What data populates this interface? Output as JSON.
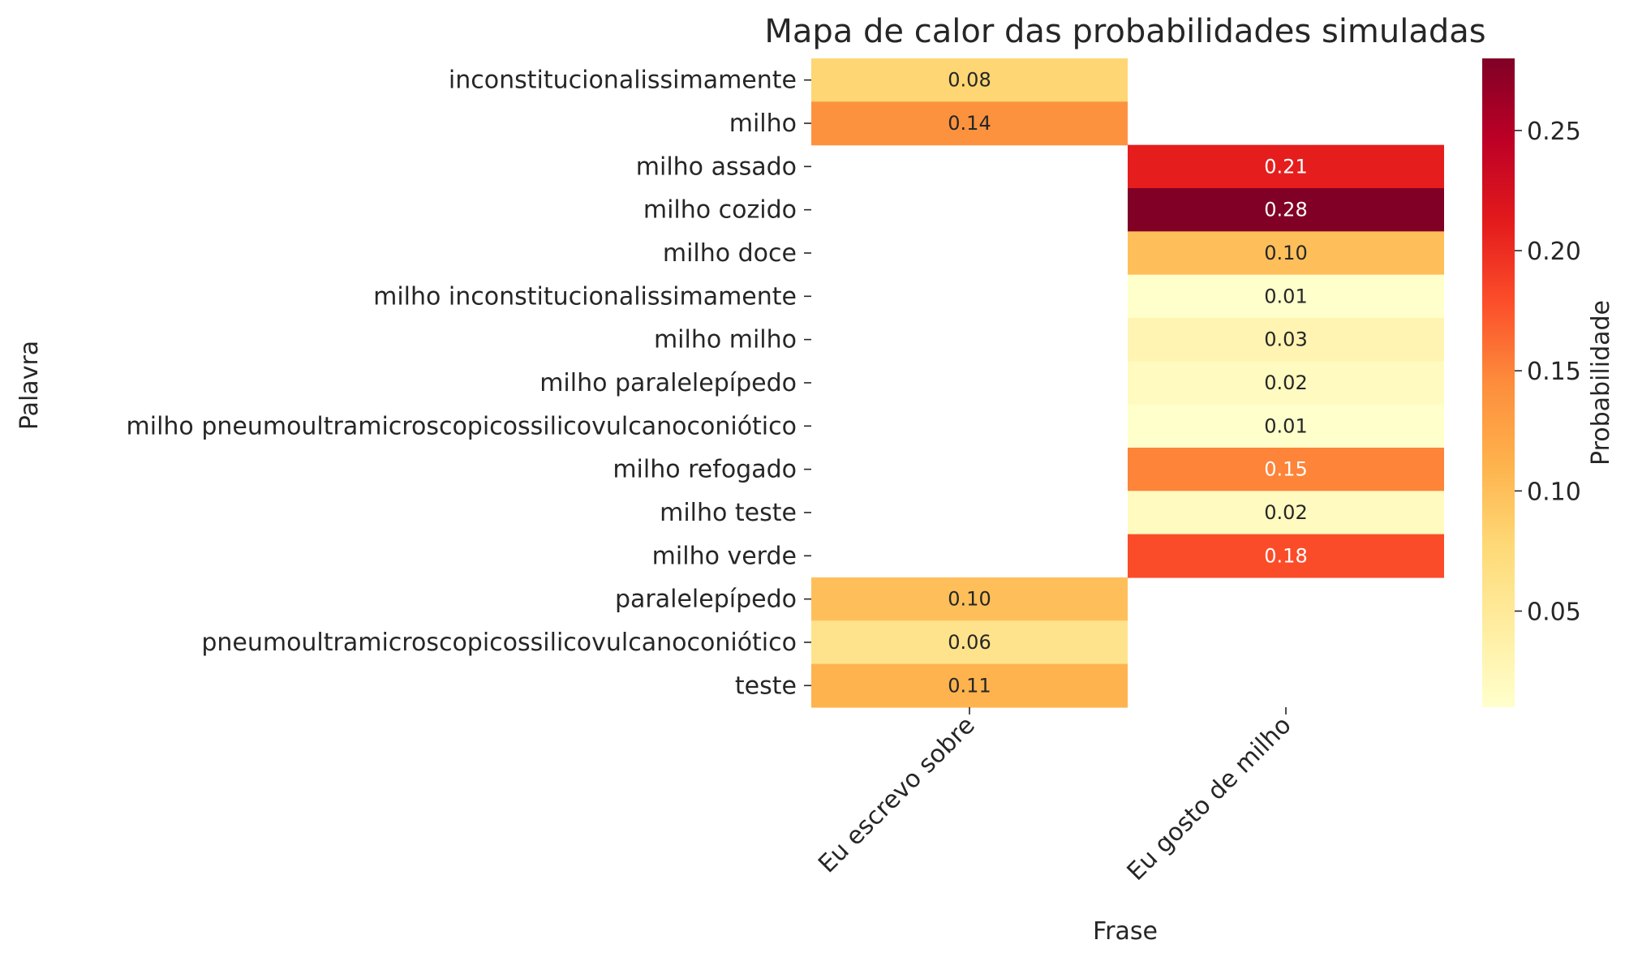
{
  "chart_data": {
    "type": "heatmap",
    "title": "Mapa de calor das probabilidades simuladas",
    "xlabel": "Frase",
    "ylabel": "Palavra",
    "colorbar_label": "Probabilidade",
    "colormap": "YlOrRd",
    "colorbar_range": [
      0.01,
      0.28
    ],
    "colorbar_ticks": [
      "0.05",
      "0.10",
      "0.15",
      "0.20",
      "0.25"
    ],
    "x_categories": [
      "Eu escrevo sobre",
      "Eu gosto de milho"
    ],
    "y_categories": [
      "inconstitucionalissimamente",
      "milho",
      "milho assado",
      "milho cozido",
      "milho doce",
      "milho inconstitucionalissimamente",
      "milho milho",
      "milho paralelepípedo",
      "milho pneumoultramicroscopicossilicovulcanoconiótico",
      "milho refogado",
      "milho teste",
      "milho verde",
      "paralelepípedo",
      "pneumoultramicroscopicossilicovulcanoconiótico",
      "teste"
    ],
    "values": [
      [
        0.08,
        null
      ],
      [
        0.14,
        null
      ],
      [
        null,
        0.21
      ],
      [
        null,
        0.28
      ],
      [
        null,
        0.1
      ],
      [
        null,
        0.01
      ],
      [
        null,
        0.03
      ],
      [
        null,
        0.02
      ],
      [
        null,
        0.01
      ],
      [
        null,
        0.15
      ],
      [
        null,
        0.02
      ],
      [
        null,
        0.18
      ],
      [
        0.1,
        null
      ],
      [
        0.06,
        null
      ],
      [
        0.11,
        null
      ]
    ],
    "value_format": "0.00",
    "legend": "none"
  }
}
